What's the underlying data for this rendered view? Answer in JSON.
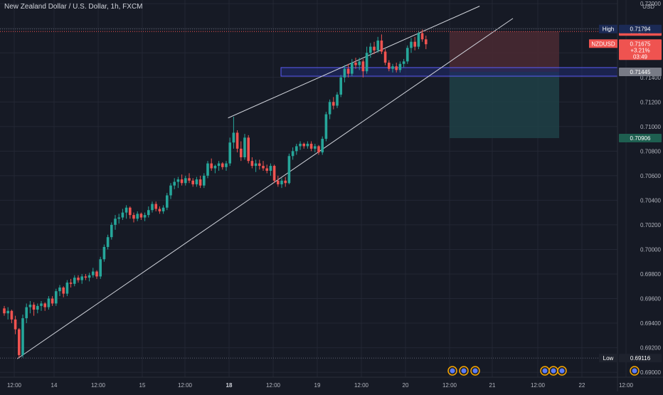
{
  "chart_data": {
    "type": "candlestick",
    "title": "New Zealand Dollar / U.S. Dollar, 1h, FXCM",
    "currency": "USD",
    "symbol": "NZDUSD",
    "ylim": [
      0.6896,
      0.7203
    ],
    "x_ticks": [
      "12:00",
      "14",
      "12:00",
      "15",
      "12:00",
      "18",
      "12:00",
      "19",
      "12:00",
      "20",
      "12:00",
      "21",
      "12:00",
      "22",
      "12:00"
    ],
    "y_ticks": [
      "0.72000",
      "0.71800",
      "0.71600",
      "0.71400",
      "0.71200",
      "0.71000",
      "0.70800",
      "0.70600",
      "0.70400",
      "0.70200",
      "0.70000",
      "0.69800",
      "0.69600",
      "0.69400",
      "0.69200",
      "0.69000"
    ],
    "y_tick_values": [
      0.72,
      0.718,
      0.716,
      0.714,
      0.712,
      0.71,
      0.708,
      0.706,
      0.704,
      0.702,
      0.7,
      0.698,
      0.696,
      0.694,
      0.692,
      0.69
    ],
    "price_labels": {
      "high_label": "High",
      "high_value": "0.71794",
      "high_price": 0.71794,
      "close_value": "0.71774",
      "close_price": 0.71774,
      "symbol_label": "NZDUSD",
      "current_value": "0.71675",
      "change_pct": "+3.21%",
      "countdown": "03:49",
      "current_price": 0.71675,
      "zone_value": "0.71445",
      "zone_price": 0.71445,
      "target_value": "0.70906",
      "target_price": 0.70906,
      "low_label": "Low",
      "low_value": "0.69116",
      "low_price": 0.69116
    },
    "zone": {
      "top": 0.7148,
      "bottom": 0.7141
    },
    "trade": {
      "stop": 0.71774,
      "entry": 0.71445,
      "target": 0.70906
    },
    "candles": [
      [
        0.6952,
        0.6954,
        0.6946,
        0.6948
      ],
      [
        0.6948,
        0.6953,
        0.6943,
        0.695
      ],
      [
        0.695,
        0.6951,
        0.694,
        0.6943
      ],
      [
        0.6943,
        0.6946,
        0.6931,
        0.6935
      ],
      [
        0.6935,
        0.6936,
        0.6912,
        0.6914
      ],
      [
        0.6914,
        0.6947,
        0.6912,
        0.6944
      ],
      [
        0.6944,
        0.6956,
        0.694,
        0.6953
      ],
      [
        0.6953,
        0.6958,
        0.6948,
        0.6955
      ],
      [
        0.6955,
        0.6957,
        0.6946,
        0.6951
      ],
      [
        0.6951,
        0.6956,
        0.6948,
        0.6954
      ],
      [
        0.6954,
        0.6958,
        0.695,
        0.6956
      ],
      [
        0.6956,
        0.6957,
        0.695,
        0.6953
      ],
      [
        0.6953,
        0.6962,
        0.6951,
        0.696
      ],
      [
        0.696,
        0.6962,
        0.6954,
        0.6956
      ],
      [
        0.6956,
        0.6968,
        0.6954,
        0.6966
      ],
      [
        0.6966,
        0.6971,
        0.6962,
        0.6969
      ],
      [
        0.6969,
        0.697,
        0.6961,
        0.6964
      ],
      [
        0.6964,
        0.6975,
        0.6962,
        0.6973
      ],
      [
        0.6973,
        0.6976,
        0.6969,
        0.6972
      ],
      [
        0.6972,
        0.6979,
        0.697,
        0.6977
      ],
      [
        0.6977,
        0.6979,
        0.6973,
        0.6975
      ],
      [
        0.6975,
        0.698,
        0.6972,
        0.6978
      ],
      [
        0.6978,
        0.698,
        0.6975,
        0.6977
      ],
      [
        0.6977,
        0.6981,
        0.6974,
        0.6979
      ],
      [
        0.6979,
        0.6985,
        0.6977,
        0.6982
      ],
      [
        0.6982,
        0.6983,
        0.6976,
        0.6978
      ],
      [
        0.6978,
        0.6994,
        0.6976,
        0.6992
      ],
      [
        0.6992,
        0.7004,
        0.699,
        0.7002
      ],
      [
        0.7002,
        0.7012,
        0.7,
        0.701
      ],
      [
        0.701,
        0.7022,
        0.7008,
        0.702
      ],
      [
        0.702,
        0.7028,
        0.7016,
        0.7025
      ],
      [
        0.7025,
        0.7029,
        0.7021,
        0.7026
      ],
      [
        0.7026,
        0.7033,
        0.7024,
        0.703
      ],
      [
        0.703,
        0.7036,
        0.7025,
        0.7034
      ],
      [
        0.7034,
        0.7035,
        0.7025,
        0.7028
      ],
      [
        0.7028,
        0.703,
        0.7022,
        0.7025
      ],
      [
        0.7025,
        0.7031,
        0.7023,
        0.7029
      ],
      [
        0.7029,
        0.703,
        0.7024,
        0.7026
      ],
      [
        0.7026,
        0.703,
        0.7023,
        0.7028
      ],
      [
        0.7028,
        0.7035,
        0.7026,
        0.7032
      ],
      [
        0.7032,
        0.7039,
        0.703,
        0.7037
      ],
      [
        0.7037,
        0.7039,
        0.7031,
        0.7033
      ],
      [
        0.7033,
        0.7035,
        0.7029,
        0.7031
      ],
      [
        0.7031,
        0.7036,
        0.7029,
        0.7034
      ],
      [
        0.7034,
        0.7046,
        0.7032,
        0.7044
      ],
      [
        0.7044,
        0.7054,
        0.7041,
        0.7052
      ],
      [
        0.7052,
        0.7058,
        0.7049,
        0.7055
      ],
      [
        0.7055,
        0.7059,
        0.705,
        0.7057
      ],
      [
        0.7057,
        0.7061,
        0.7052,
        0.7054
      ],
      [
        0.7054,
        0.706,
        0.7052,
        0.7058
      ],
      [
        0.7058,
        0.7062,
        0.7054,
        0.7056
      ],
      [
        0.7056,
        0.7058,
        0.7051,
        0.7053
      ],
      [
        0.7053,
        0.7059,
        0.7051,
        0.7057
      ],
      [
        0.7057,
        0.706,
        0.705,
        0.7052
      ],
      [
        0.7052,
        0.7062,
        0.705,
        0.706
      ],
      [
        0.706,
        0.7072,
        0.7058,
        0.707
      ],
      [
        0.707,
        0.7074,
        0.7064,
        0.7066
      ],
      [
        0.7066,
        0.7069,
        0.7062,
        0.7068
      ],
      [
        0.7068,
        0.7072,
        0.7064,
        0.707
      ],
      [
        0.707,
        0.7071,
        0.7065,
        0.7067
      ],
      [
        0.7067,
        0.7072,
        0.7064,
        0.707
      ],
      [
        0.707,
        0.7091,
        0.7068,
        0.7087
      ],
      [
        0.7087,
        0.7108,
        0.7082,
        0.7095
      ],
      [
        0.7095,
        0.7097,
        0.7079,
        0.7082
      ],
      [
        0.7082,
        0.7088,
        0.7072,
        0.7075
      ],
      [
        0.7075,
        0.7094,
        0.7073,
        0.7091
      ],
      [
        0.7091,
        0.7093,
        0.707,
        0.7072
      ],
      [
        0.7072,
        0.7075,
        0.7066,
        0.7068
      ],
      [
        0.7068,
        0.7073,
        0.7063,
        0.707
      ],
      [
        0.707,
        0.7073,
        0.7065,
        0.7068
      ],
      [
        0.7068,
        0.7072,
        0.7064,
        0.7066
      ],
      [
        0.7066,
        0.7069,
        0.7062,
        0.7064
      ],
      [
        0.7064,
        0.707,
        0.706,
        0.7068
      ],
      [
        0.7068,
        0.7069,
        0.7054,
        0.7056
      ],
      [
        0.7056,
        0.706,
        0.7051,
        0.7053
      ],
      [
        0.7053,
        0.7058,
        0.705,
        0.7056
      ],
      [
        0.7056,
        0.7059,
        0.7051,
        0.7054
      ],
      [
        0.7054,
        0.7078,
        0.7053,
        0.7076
      ],
      [
        0.7076,
        0.7083,
        0.7073,
        0.708
      ],
      [
        0.708,
        0.7086,
        0.7077,
        0.7084
      ],
      [
        0.7084,
        0.7088,
        0.7081,
        0.7086
      ],
      [
        0.7086,
        0.7087,
        0.7082,
        0.7084
      ],
      [
        0.7084,
        0.7088,
        0.7082,
        0.7086
      ],
      [
        0.7086,
        0.7088,
        0.708,
        0.7082
      ],
      [
        0.7082,
        0.7086,
        0.7079,
        0.7084
      ],
      [
        0.7084,
        0.7085,
        0.7077,
        0.7079
      ],
      [
        0.7079,
        0.7092,
        0.7077,
        0.709
      ],
      [
        0.709,
        0.7112,
        0.7088,
        0.711
      ],
      [
        0.711,
        0.7122,
        0.7106,
        0.712
      ],
      [
        0.712,
        0.7124,
        0.7114,
        0.7117
      ],
      [
        0.7117,
        0.7128,
        0.7115,
        0.7126
      ],
      [
        0.7126,
        0.7142,
        0.7124,
        0.714
      ],
      [
        0.714,
        0.715,
        0.7136,
        0.7147
      ],
      [
        0.7147,
        0.7151,
        0.714,
        0.7143
      ],
      [
        0.7143,
        0.7155,
        0.7141,
        0.7152
      ],
      [
        0.7152,
        0.7156,
        0.7147,
        0.715
      ],
      [
        0.715,
        0.7156,
        0.7146,
        0.7153
      ],
      [
        0.7153,
        0.7155,
        0.714,
        0.7145
      ],
      [
        0.7145,
        0.7165,
        0.7143,
        0.716
      ],
      [
        0.716,
        0.7168,
        0.7156,
        0.7165
      ],
      [
        0.7165,
        0.7169,
        0.7159,
        0.7162
      ],
      [
        0.7162,
        0.7173,
        0.716,
        0.717
      ],
      [
        0.717,
        0.7175,
        0.7159,
        0.7161
      ],
      [
        0.7161,
        0.7163,
        0.715,
        0.7152
      ],
      [
        0.7152,
        0.7154,
        0.7145,
        0.7147
      ],
      [
        0.7147,
        0.7151,
        0.7144,
        0.7149
      ],
      [
        0.7149,
        0.7152,
        0.7144,
        0.7146
      ],
      [
        0.7146,
        0.7153,
        0.7144,
        0.7151
      ],
      [
        0.7151,
        0.7155,
        0.7148,
        0.7153
      ],
      [
        0.7153,
        0.7166,
        0.7151,
        0.7164
      ],
      [
        0.7164,
        0.7172,
        0.716,
        0.7169
      ],
      [
        0.7169,
        0.7173,
        0.7162,
        0.7165
      ],
      [
        0.7165,
        0.7178,
        0.7163,
        0.7176
      ],
      [
        0.7176,
        0.7179,
        0.7169,
        0.7171
      ],
      [
        0.7171,
        0.7174,
        0.7163,
        0.7167
      ]
    ]
  },
  "calendar_events": [
    "calendar-event",
    "calendar-event",
    "calendar-event",
    "calendar-event",
    "calendar-event",
    "calendar-event",
    "calendar-event",
    "calendar-event"
  ],
  "colors": {
    "background": "#161a25",
    "grid": "#232734",
    "up": "#26a69a",
    "down": "#ef5350",
    "text": "#b2b5be",
    "trendline": "#d1d4dc",
    "zone_fill": "#1f2a6b",
    "zone_border": "#5b5bf5",
    "stop_fill": "#4a2a33",
    "target_fill": "#1f4147",
    "high_badge": "#1b2a55",
    "close_badge": "#ef5350",
    "zone_badge": "#787b86",
    "target_badge": "#1e5f50",
    "low_badge": "#1e222d"
  }
}
